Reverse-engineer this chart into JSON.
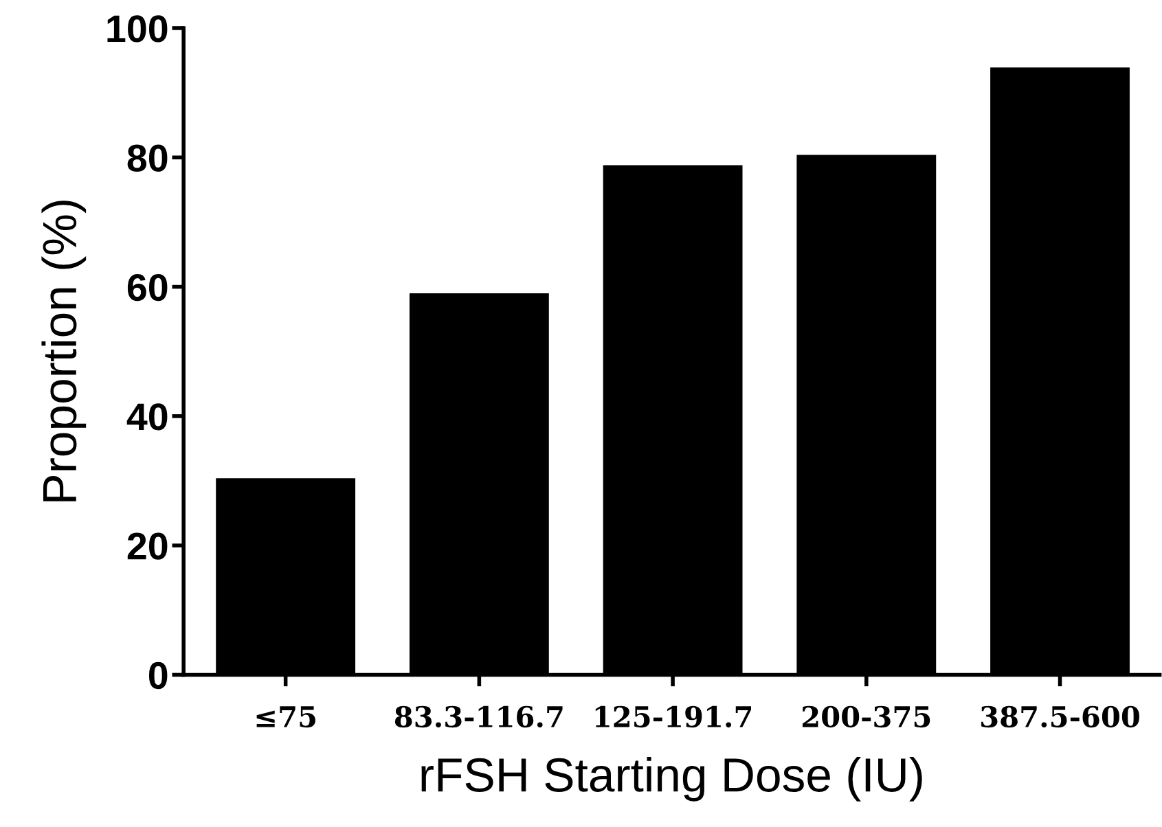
{
  "chart_data": {
    "type": "bar",
    "xlabel": "rFSH Starting Dose (IU)",
    "ylabel": "Proportion (%)",
    "categories": [
      "≤75",
      "83.3-116.7",
      "125-191.7",
      "200-375",
      "387.5-600"
    ],
    "values": [
      30.4,
      59.0,
      78.8,
      80.4,
      93.9
    ],
    "color": "#000000",
    "ylim": [
      0,
      100
    ],
    "yticks": [
      0,
      20,
      40,
      60,
      80,
      100
    ],
    "grid": false,
    "legend": false
  }
}
